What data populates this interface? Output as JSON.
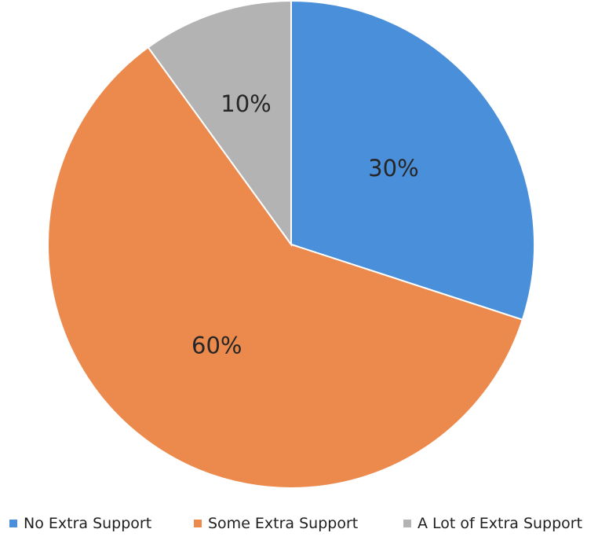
{
  "chart_data": {
    "type": "pie",
    "categories": [
      "No Extra Support",
      "Some Extra Support",
      "A Lot of Extra Support"
    ],
    "values": [
      30,
      60,
      10
    ],
    "labels": [
      "30%",
      "60%",
      "10%"
    ],
    "colors": [
      "#4a8fd9",
      "#ec8a4d",
      "#b3b3b3"
    ],
    "start_angle": "12 o'clock",
    "direction": "clockwise",
    "legend_position": "bottom"
  }
}
